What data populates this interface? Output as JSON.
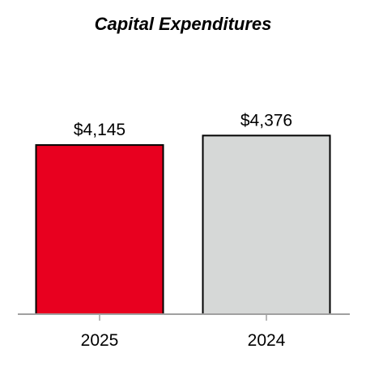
{
  "chart_data": {
    "type": "bar",
    "title": "Capital Expenditures",
    "xlabel": "",
    "ylabel": "",
    "categories": [
      "2025",
      "2024"
    ],
    "values": [
      4145,
      4376
    ],
    "data_labels": [
      "$4,145",
      "$4,376"
    ],
    "bar_colors": [
      "#e8001f",
      "#d6d8d7"
    ],
    "bar_edge_color": "#000000",
    "axis_color": "#a0a0a0",
    "ylim": [
      0,
      5000
    ],
    "grid": false,
    "legend": "none"
  }
}
